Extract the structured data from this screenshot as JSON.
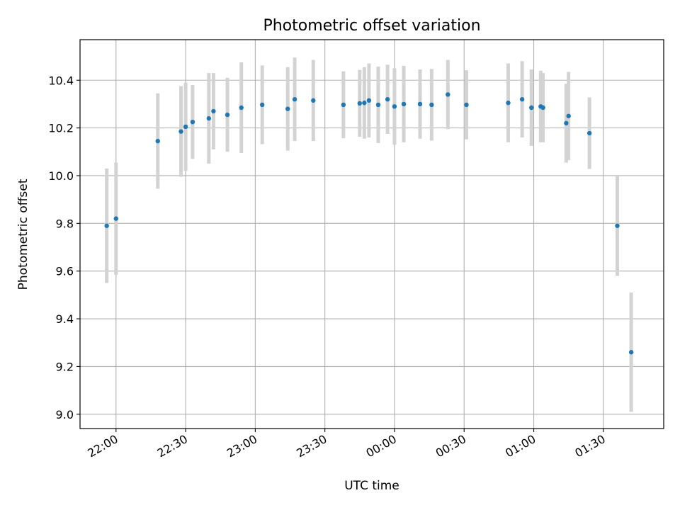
{
  "chart_data": {
    "type": "scatter",
    "title": "Photometric offset variation",
    "xlabel": "UTC time",
    "ylabel": "Photometric offset",
    "x_ticks": [
      {
        "t": 0,
        "label": "22:00"
      },
      {
        "t": 30,
        "label": "22:30"
      },
      {
        "t": 60,
        "label": "23:00"
      },
      {
        "t": 90,
        "label": "23:30"
      },
      {
        "t": 120,
        "label": "00:00"
      },
      {
        "t": 150,
        "label": "00:30"
      },
      {
        "t": 180,
        "label": "01:00"
      },
      {
        "t": 210,
        "label": "01:30"
      }
    ],
    "xlim": [
      -15.5,
      236
    ],
    "y_ticks": [
      "9.0",
      "9.2",
      "9.4",
      "9.6",
      "9.8",
      "10.0",
      "10.2",
      "10.4"
    ],
    "ylim": [
      8.94,
      10.57
    ],
    "grid": true,
    "marker_color": "#1f77b4",
    "errorbar_color": "#d3d3d3",
    "series": [
      {
        "x": [
          "21:56",
          "22:00",
          "22:18",
          "22:28",
          "22:30",
          "22:33",
          "22:40",
          "22:42",
          "22:48",
          "22:54",
          "23:03",
          "23:14",
          "23:17",
          "23:25",
          "23:38",
          "23:45",
          "23:47",
          "23:49",
          "23:53",
          "23:57",
          "24:00",
          "00:04",
          "00:11",
          "00:16",
          "00:23",
          "00:31",
          "00:49",
          "00:55",
          "00:59",
          "01:03",
          "01:04",
          "01:14",
          "01:15",
          "01:24",
          "01:36",
          "01:42"
        ],
        "y": [
          9.79,
          9.82,
          10.145,
          10.185,
          10.205,
          10.225,
          10.24,
          10.27,
          10.255,
          10.285,
          10.297,
          10.28,
          10.32,
          10.315,
          10.297,
          10.303,
          10.305,
          10.315,
          10.297,
          10.32,
          10.29,
          10.3,
          10.3,
          10.297,
          10.34,
          10.297,
          10.305,
          10.32,
          10.285,
          10.29,
          10.285,
          10.22,
          10.25,
          10.178,
          9.79,
          9.26
        ],
        "err": [
          0.24,
          0.235,
          0.2,
          0.19,
          0.185,
          0.155,
          0.19,
          0.16,
          0.155,
          0.19,
          0.165,
          0.175,
          0.175,
          0.17,
          0.14,
          0.14,
          0.15,
          0.155,
          0.16,
          0.145,
          0.16,
          0.16,
          0.145,
          0.15,
          0.145,
          0.145,
          0.165,
          0.16,
          0.16,
          0.15,
          0.145,
          0.165,
          0.185,
          0.15,
          0.21,
          0.25
        ]
      }
    ]
  }
}
